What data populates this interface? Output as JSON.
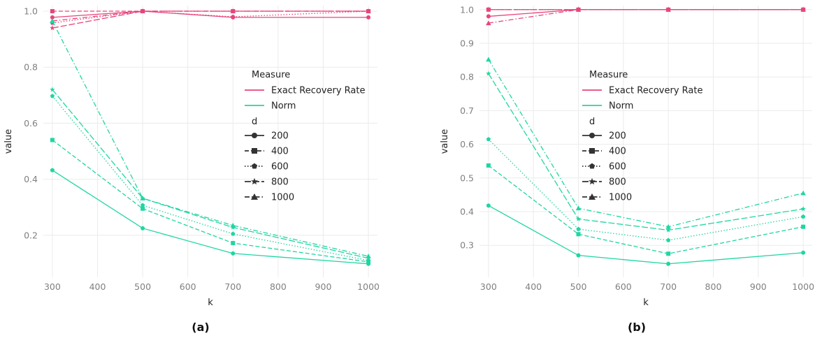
{
  "colors": {
    "Exact Recovery Rate": "#e8457a",
    "Norm": "#1fd6a3"
  },
  "linestyles": {
    "200": "solid",
    "400": "dashed",
    "600": "dotted",
    "800": "longdash",
    "1000": "dotdash"
  },
  "shapes": {
    "200": "circle",
    "400": "square",
    "600": "pentagon",
    "800": "star",
    "1000": "triangle"
  },
  "chart_data": [
    {
      "type": "line",
      "caption": "(a)",
      "xlabel": "k",
      "ylabel": "value",
      "x": [
        300,
        500,
        700,
        1000
      ],
      "xticks": [
        300,
        400,
        500,
        600,
        700,
        800,
        900,
        1000
      ],
      "xlim": [
        280,
        1020
      ],
      "yticks": [
        0.2,
        0.4,
        0.6,
        0.8,
        1.0
      ],
      "ytick_labels": [
        "0.2",
        "0.4",
        "0.6",
        "0.8",
        "1.0"
      ],
      "ylim": [
        0.05,
        1.02
      ],
      "legend": {
        "placement": "center-right",
        "measure_title": "Measure",
        "d_title": "d",
        "measures": [
          "Exact Recovery Rate",
          "Norm"
        ],
        "d_values": [
          "200",
          "400",
          "600",
          "800",
          "1000"
        ]
      },
      "series": [
        {
          "measure": "Exact Recovery Rate",
          "d": "200",
          "values": [
            0.978,
            1.0,
            0.978,
            0.978
          ]
        },
        {
          "measure": "Exact Recovery Rate",
          "d": "400",
          "values": [
            1.0,
            1.0,
            1.0,
            1.0
          ]
        },
        {
          "measure": "Exact Recovery Rate",
          "d": "600",
          "values": [
            0.958,
            1.0,
            0.98,
            1.0
          ]
        },
        {
          "measure": "Exact Recovery Rate",
          "d": "800",
          "values": [
            0.94,
            1.0,
            1.0,
            1.0
          ]
        },
        {
          "measure": "Exact Recovery Rate",
          "d": "1000",
          "values": [
            0.965,
            1.0,
            1.0,
            1.0
          ]
        },
        {
          "measure": "Norm",
          "d": "200",
          "values": [
            0.432,
            0.225,
            0.135,
            0.098
          ]
        },
        {
          "measure": "Norm",
          "d": "400",
          "values": [
            0.54,
            0.295,
            0.172,
            0.105
          ]
        },
        {
          "measure": "Norm",
          "d": "600",
          "values": [
            0.697,
            0.307,
            0.205,
            0.11
          ]
        },
        {
          "measure": "Norm",
          "d": "800",
          "values": [
            0.72,
            0.332,
            0.228,
            0.118
          ]
        },
        {
          "measure": "Norm",
          "d": "1000",
          "values": [
            0.965,
            0.332,
            0.235,
            0.125
          ]
        }
      ]
    },
    {
      "type": "line",
      "caption": "(b)",
      "xlabel": "k",
      "ylabel": "value",
      "x": [
        300,
        500,
        700,
        1000
      ],
      "xticks": [
        300,
        400,
        500,
        600,
        700,
        800,
        900,
        1000
      ],
      "xlim": [
        280,
        1020
      ],
      "yticks": [
        0.3,
        0.4,
        0.5,
        0.6,
        0.7,
        0.8,
        0.9,
        1.0
      ],
      "ytick_labels": [
        "0.3",
        "0.4",
        "0.5",
        "0.6",
        "0.7",
        "0.8",
        "0.9",
        "1.0"
      ],
      "ylim": [
        0.205,
        1.012
      ],
      "legend": {
        "placement": "center-right",
        "measure_title": "Measure",
        "d_title": "d",
        "measures": [
          "Exact Recovery Rate",
          "Norm"
        ],
        "d_values": [
          "200",
          "400",
          "600",
          "800",
          "1000"
        ]
      },
      "series": [
        {
          "measure": "Exact Recovery Rate",
          "d": "200",
          "values": [
            0.98,
            1.0,
            1.0,
            1.0
          ]
        },
        {
          "measure": "Exact Recovery Rate",
          "d": "400",
          "values": [
            1.0,
            1.0,
            1.0,
            1.0
          ]
        },
        {
          "measure": "Exact Recovery Rate",
          "d": "600",
          "values": [
            1.0,
            1.0,
            1.0,
            1.0
          ]
        },
        {
          "measure": "Exact Recovery Rate",
          "d": "800",
          "values": [
            1.0,
            1.0,
            1.0,
            1.0
          ]
        },
        {
          "measure": "Exact Recovery Rate",
          "d": "1000",
          "values": [
            0.96,
            1.0,
            1.0,
            1.0
          ]
        },
        {
          "measure": "Norm",
          "d": "200",
          "values": [
            0.418,
            0.27,
            0.245,
            0.278
          ]
        },
        {
          "measure": "Norm",
          "d": "400",
          "values": [
            0.537,
            0.333,
            0.275,
            0.355
          ]
        },
        {
          "measure": "Norm",
          "d": "600",
          "values": [
            0.615,
            0.348,
            0.315,
            0.385
          ]
        },
        {
          "measure": "Norm",
          "d": "800",
          "values": [
            0.81,
            0.378,
            0.345,
            0.408
          ]
        },
        {
          "measure": "Norm",
          "d": "1000",
          "values": [
            0.852,
            0.41,
            0.355,
            0.455
          ]
        }
      ]
    }
  ]
}
